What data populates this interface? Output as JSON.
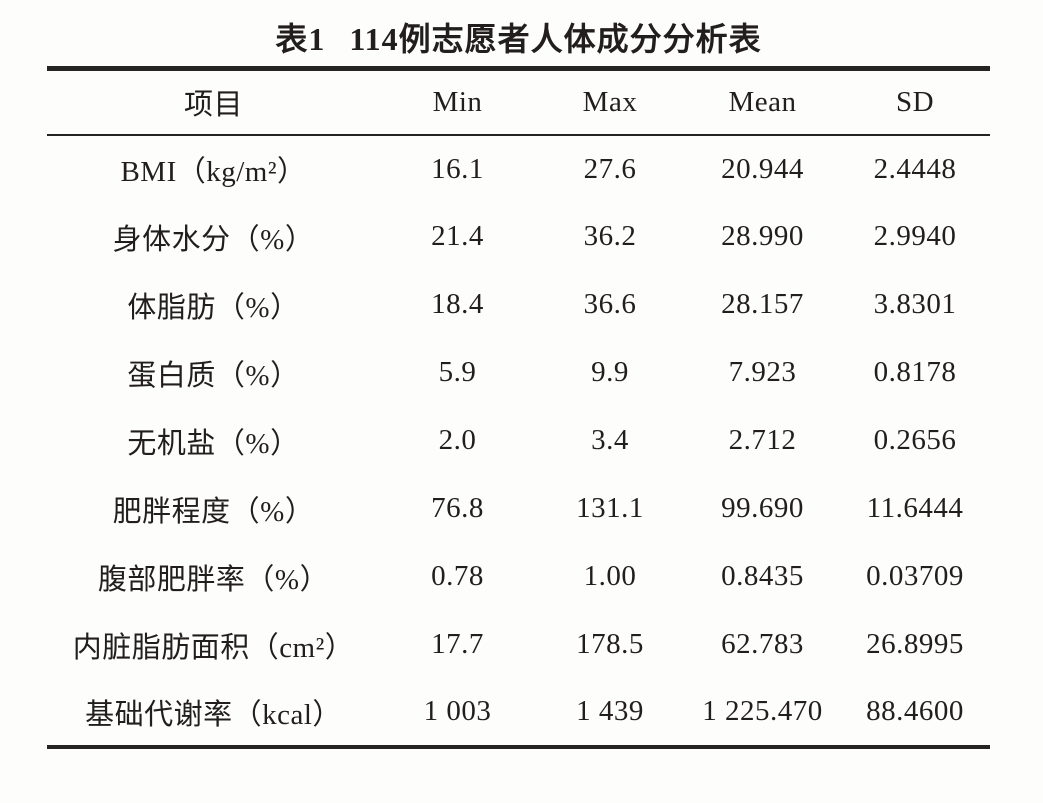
{
  "page": {
    "background": "#fdfdfc",
    "text_color": "#221e1e",
    "rule_color": "#262323"
  },
  "title": {
    "label": "表1",
    "text": "114例志愿者人体成分分析表"
  },
  "table": {
    "columns": [
      "项目",
      "Min",
      "Max",
      "Mean",
      "SD"
    ],
    "rows": [
      {
        "item": "BMI（kg/m²）",
        "min": "16.1",
        "max": "27.6",
        "mean": "20.944",
        "sd": "2.4448"
      },
      {
        "item": "身体水分（%）",
        "min": "21.4",
        "max": "36.2",
        "mean": "28.990",
        "sd": "2.9940"
      },
      {
        "item": "体脂肪（%）",
        "min": "18.4",
        "max": "36.6",
        "mean": "28.157",
        "sd": "3.8301"
      },
      {
        "item": "蛋白质（%）",
        "min": "5.9",
        "max": "9.9",
        "mean": "7.923",
        "sd": "0.8178"
      },
      {
        "item": "无机盐（%）",
        "min": "2.0",
        "max": "3.4",
        "mean": "2.712",
        "sd": "0.2656"
      },
      {
        "item": "肥胖程度（%）",
        "min": "76.8",
        "max": "131.1",
        "mean": "99.690",
        "sd": "11.6444"
      },
      {
        "item": "腹部肥胖率（%）",
        "min": "0.78",
        "max": "1.00",
        "mean": "0.8435",
        "sd": "0.03709"
      },
      {
        "item": "内脏脂肪面积（cm²）",
        "min": "17.7",
        "max": "178.5",
        "mean": "62.783",
        "sd": "26.8995"
      },
      {
        "item": "基础代谢率（kcal）",
        "min": "1 003",
        "max": "1 439",
        "mean": "1 225.470",
        "sd": "88.4600"
      }
    ]
  },
  "chart_data": {
    "type": "table",
    "title": "表1 114例志愿者人体成分分析表",
    "columns": [
      "项目",
      "Min",
      "Max",
      "Mean",
      "SD"
    ],
    "rows": [
      [
        "BMI（kg/m²）",
        16.1,
        27.6,
        20.944,
        2.4448
      ],
      [
        "身体水分（%）",
        21.4,
        36.2,
        28.99,
        2.994
      ],
      [
        "体脂肪（%）",
        18.4,
        36.6,
        28.157,
        3.8301
      ],
      [
        "蛋白质（%）",
        5.9,
        9.9,
        7.923,
        0.8178
      ],
      [
        "无机盐（%）",
        2.0,
        3.4,
        2.712,
        0.2656
      ],
      [
        "肥胖程度（%）",
        76.8,
        131.1,
        99.69,
        11.6444
      ],
      [
        "腹部肥胖率（%）",
        0.78,
        1.0,
        0.8435,
        0.03709
      ],
      [
        "内脏脂肪面积（cm²）",
        17.7,
        178.5,
        62.783,
        26.8995
      ],
      [
        "基础代谢率（kcal）",
        1003,
        1439,
        1225.47,
        88.46
      ]
    ]
  }
}
